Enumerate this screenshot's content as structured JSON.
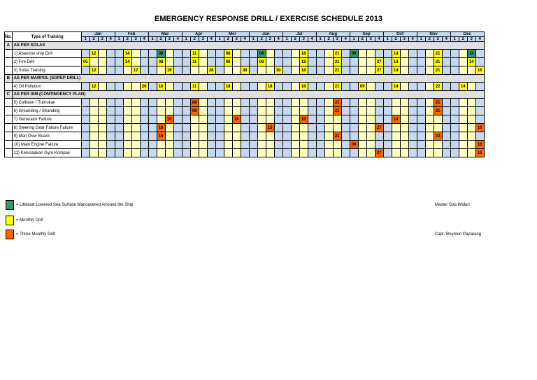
{
  "title": "EMERGENCY RESPONSE DRILL / EXERCISE SCHEDULE 2013",
  "header": {
    "no": "No.",
    "type": "Type of Training"
  },
  "months": [
    "Jan",
    "Feb",
    "Mar",
    "Apr",
    "Mei",
    "Jun",
    "Jul",
    "Aug",
    "Sep",
    "Oct",
    "Nov",
    "Dec"
  ],
  "weeks": [
    "1",
    "2",
    "3",
    "4"
  ],
  "colors": {
    "bg": "#c6d9f1",
    "monthly_cols": "#ffffc0",
    "monthly": "#ffff00",
    "three_monthly": "#ff6600",
    "lifeboat": "#339966"
  },
  "sections": [
    {
      "code": "A",
      "title": "AS PER SOLAS",
      "rows": [
        {
          "label": "1) Abandon ship Drill",
          "cells": [
            {
              "m": 0,
              "w": 1,
              "v": "12",
              "c": "m"
            },
            {
              "m": 1,
              "w": 1,
              "v": "14",
              "c": "m"
            },
            {
              "m": 2,
              "w": 1,
              "v": "08",
              "c": "l"
            },
            {
              "m": 3,
              "w": 1,
              "v": "11",
              "c": "m"
            },
            {
              "m": 4,
              "w": 1,
              "v": "08",
              "c": "m"
            },
            {
              "m": 5,
              "w": 1,
              "v": "08",
              "c": "l"
            },
            {
              "m": 6,
              "w": 2,
              "v": "18",
              "c": "m"
            },
            {
              "m": 7,
              "w": 2,
              "v": "21",
              "c": "m"
            },
            {
              "m": 8,
              "w": 0,
              "v": "09",
              "c": "l"
            },
            {
              "m": 9,
              "w": 1,
              "v": "14",
              "c": "m"
            },
            {
              "m": 10,
              "w": 2,
              "v": "21",
              "c": "m"
            },
            {
              "m": 11,
              "w": 2,
              "v": "14",
              "c": "l"
            }
          ]
        },
        {
          "label": "2) Fire Drill",
          "cells": [
            {
              "m": 0,
              "w": 0,
              "v": "05",
              "c": "m"
            },
            {
              "m": 1,
              "w": 1,
              "v": "14",
              "c": "m"
            },
            {
              "m": 2,
              "w": 1,
              "v": "08",
              "c": "m"
            },
            {
              "m": 3,
              "w": 1,
              "v": "11",
              "c": "m"
            },
            {
              "m": 4,
              "w": 1,
              "v": "08",
              "c": "m"
            },
            {
              "m": 5,
              "w": 1,
              "v": "08",
              "c": "m"
            },
            {
              "m": 6,
              "w": 2,
              "v": "18",
              "c": "m"
            },
            {
              "m": 7,
              "w": 2,
              "v": "21",
              "c": "m"
            },
            {
              "m": 8,
              "w": 3,
              "v": "27",
              "c": "m"
            },
            {
              "m": 9,
              "w": 1,
              "v": "14",
              "c": "m"
            },
            {
              "m": 10,
              "w": 2,
              "v": "21",
              "c": "m"
            },
            {
              "m": 11,
              "w": 2,
              "v": "14",
              "c": "m"
            }
          ]
        },
        {
          "label": "3) Solas Training",
          "cells": [
            {
              "m": 0,
              "w": 1,
              "v": "12",
              "c": "m"
            },
            {
              "m": 1,
              "w": 2,
              "v": "17",
              "c": "m"
            },
            {
              "m": 2,
              "w": 2,
              "v": "19",
              "c": "m"
            },
            {
              "m": 3,
              "w": 3,
              "v": "28",
              "c": "m"
            },
            {
              "m": 4,
              "w": 3,
              "v": "30",
              "c": "m"
            },
            {
              "m": 5,
              "w": 3,
              "v": "30",
              "c": "m"
            },
            {
              "m": 6,
              "w": 2,
              "v": "18",
              "c": "m"
            },
            {
              "m": 7,
              "w": 2,
              "v": "21",
              "c": "m"
            },
            {
              "m": 8,
              "w": 3,
              "v": "27",
              "c": "m"
            },
            {
              "m": 9,
              "w": 1,
              "v": "14",
              "c": "m"
            },
            {
              "m": 10,
              "w": 2,
              "v": "21",
              "c": "m"
            },
            {
              "m": 11,
              "w": 3,
              "v": "16",
              "c": "m"
            }
          ]
        }
      ]
    },
    {
      "code": "B",
      "title": "AS PER MARPOL (SOPEP DRILL)",
      "rows": [
        {
          "label": "4) Oil Pollution",
          "cells": [
            {
              "m": 0,
              "w": 1,
              "v": "12",
              "c": "m"
            },
            {
              "m": 1,
              "w": 3,
              "v": "26",
              "c": "m"
            },
            {
              "m": 2,
              "w": 1,
              "v": "16",
              "c": "m"
            },
            {
              "m": 3,
              "w": 1,
              "v": "11",
              "c": "m"
            },
            {
              "m": 4,
              "w": 1,
              "v": "18",
              "c": "m"
            },
            {
              "m": 5,
              "w": 2,
              "v": "18",
              "c": "m"
            },
            {
              "m": 6,
              "w": 2,
              "v": "18",
              "c": "m"
            },
            {
              "m": 7,
              "w": 2,
              "v": "21",
              "c": "m"
            },
            {
              "m": 8,
              "w": 1,
              "v": "09",
              "c": "m"
            },
            {
              "m": 9,
              "w": 1,
              "v": "14",
              "c": "m"
            },
            {
              "m": 10,
              "w": 2,
              "v": "22",
              "c": "m"
            },
            {
              "m": 11,
              "w": 1,
              "v": "14",
              "c": "m"
            }
          ]
        }
      ]
    },
    {
      "code": "C",
      "title": "AS PER ISM (CONTINGENCY PLAN)",
      "rows": [
        {
          "label": "5) Collision / Tubrukan",
          "cells": [
            {
              "m": 3,
              "w": 1,
              "v": "08",
              "c": "t"
            },
            {
              "m": 7,
              "w": 2,
              "v": "21",
              "c": "t"
            },
            {
              "m": 10,
              "w": 2,
              "v": "21",
              "c": "t"
            }
          ]
        },
        {
          "label": "6) Grounding / Stranding",
          "cells": [
            {
              "m": 3,
              "w": 1,
              "v": "08",
              "c": "t"
            },
            {
              "m": 7,
              "w": 2,
              "v": "21",
              "c": "t"
            },
            {
              "m": 10,
              "w": 2,
              "v": "21",
              "c": "t"
            }
          ]
        },
        {
          "label": "7) Generator Failure",
          "cells": [
            {
              "m": 2,
              "w": 2,
              "v": "19",
              "c": "t"
            },
            {
              "m": 4,
              "w": 2,
              "v": "18",
              "c": "t"
            },
            {
              "m": 6,
              "w": 2,
              "v": "18",
              "c": "t"
            },
            {
              "m": 9,
              "w": 1,
              "v": "14",
              "c": "t"
            }
          ]
        },
        {
          "label": "8) Steering Gear Failure Failure",
          "cells": [
            {
              "m": 2,
              "w": 1,
              "v": "16",
              "c": "t"
            },
            {
              "m": 5,
              "w": 2,
              "v": "15",
              "c": "t"
            },
            {
              "m": 8,
              "w": 3,
              "v": "27",
              "c": "t"
            },
            {
              "m": 11,
              "w": 3,
              "v": "16",
              "c": "t"
            }
          ]
        },
        {
          "label": "9) Man Over Board",
          "cells": [
            {
              "m": 2,
              "w": 1,
              "v": "16",
              "c": "t"
            },
            {
              "m": 7,
              "w": 2,
              "v": "21",
              "c": "t"
            },
            {
              "m": 10,
              "w": 2,
              "v": "22",
              "c": "t"
            }
          ]
        },
        {
          "label": "10) Main Engine  Failure",
          "cells": [
            {
              "m": 8,
              "w": 0,
              "v": "09",
              "c": "t"
            },
            {
              "m": 11,
              "w": 3,
              "v": "16",
              "c": "t"
            }
          ]
        },
        {
          "label": "11) Kerusaakan Gyro Kompas",
          "cells": [
            {
              "m": 8,
              "w": 3,
              "v": "27",
              "c": "t"
            },
            {
              "m": 11,
              "w": 3,
              "v": "16",
              "c": "t"
            }
          ]
        }
      ]
    }
  ],
  "legend": [
    {
      "text": "= Lifeboat Lowered Sea Surface Manouvered Arround the Ship",
      "color": "#339966"
    },
    {
      "text": "= Monthly Drill",
      "color": "#ffff00"
    },
    {
      "text": "= Three Monthly Drill",
      "color": "#ff6600"
    }
  ],
  "signatures": {
    "master": "Master Gas Widuri",
    "captain": "Capt. Reymon Paparang"
  }
}
